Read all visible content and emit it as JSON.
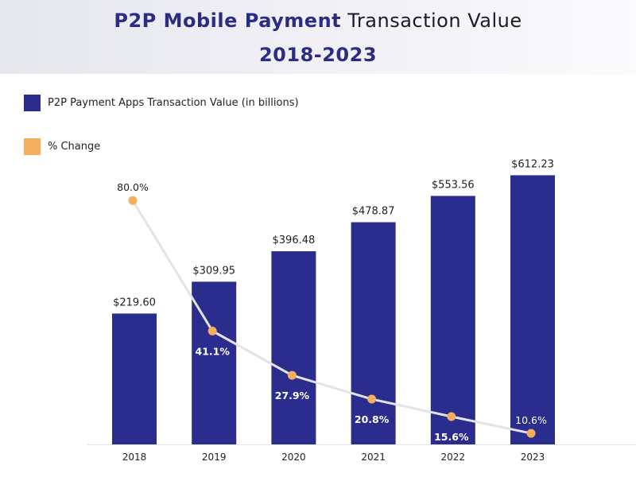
{
  "title": {
    "part1": "P2P Mobile Payment",
    "part2": "Transaction Value",
    "line2": "2018-2023"
  },
  "chart_data": {
    "type": "bar",
    "categories": [
      "2018",
      "2019",
      "2020",
      "2021",
      "2022",
      "2023"
    ],
    "series": [
      {
        "name": "P2P Payment Apps Transaction Value (in billions)",
        "type": "bar",
        "color": "#2b2d8e",
        "values": [
          219.6,
          309.95,
          396.48,
          478.87,
          553.56,
          612.23
        ],
        "labels": [
          "$219.60",
          "$309.95",
          "$396.48",
          "$478.87",
          "$553.56",
          "$612.23"
        ]
      },
      {
        "name": "% Change",
        "type": "line",
        "color": "#f5ad5e",
        "line_color": "#e4e4e8",
        "values": [
          80.0,
          41.1,
          27.9,
          20.8,
          15.6,
          10.6
        ],
        "labels": [
          "80.0%",
          "41.1%",
          "27.9%",
          "20.8%",
          "15.6%",
          "10.6%"
        ]
      }
    ],
    "title": "P2P Mobile Payment Transaction Value 2018-2023",
    "legend_position": "top-left",
    "grid": false,
    "y_axis_visible": false
  }
}
